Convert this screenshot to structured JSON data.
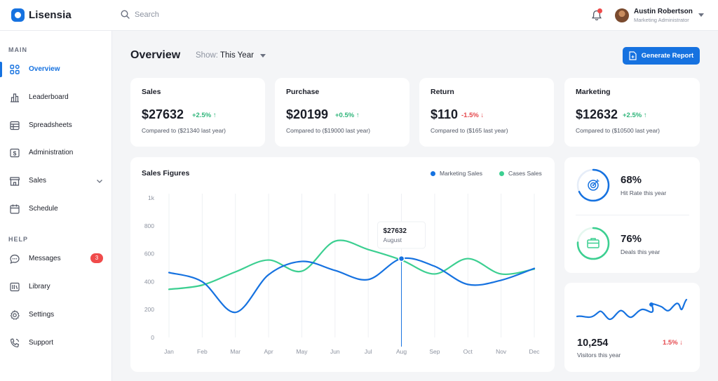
{
  "app": {
    "name": "Lisensia"
  },
  "search": {
    "placeholder": "Search"
  },
  "user": {
    "name": "Austin Robertson",
    "role": "Marketing Administrator"
  },
  "sidebar": {
    "main_label": "MAIN",
    "help_label": "HELP",
    "main_items": [
      {
        "label": "Overview",
        "icon": "grid-icon",
        "active": true
      },
      {
        "label": "Leaderboard",
        "icon": "bar-chart-icon"
      },
      {
        "label": "Spreadsheets",
        "icon": "table-icon"
      },
      {
        "label": "Administration",
        "icon": "dollar-icon"
      },
      {
        "label": "Sales",
        "icon": "store-icon",
        "expandable": true
      },
      {
        "label": "Schedule",
        "icon": "calendar-icon"
      }
    ],
    "help_items": [
      {
        "label": "Messages",
        "icon": "chat-icon",
        "badge": "3"
      },
      {
        "label": "Library",
        "icon": "library-icon"
      },
      {
        "label": "Settings",
        "icon": "gear-icon"
      },
      {
        "label": "Support",
        "icon": "phone-icon"
      }
    ]
  },
  "header": {
    "title": "Overview",
    "show_label": "Show:",
    "show_value": "This Year",
    "generate_label": "Generate Report"
  },
  "stats": [
    {
      "title": "Sales",
      "value": "$27632",
      "change": "+2.5%",
      "direction": "up",
      "compare": "Compared to ($21340 last year)"
    },
    {
      "title": "Purchase",
      "value": "$20199",
      "change": "+0.5%",
      "direction": "up",
      "compare": "Compared to ($19000 last year)"
    },
    {
      "title": "Return",
      "value": "$110",
      "change": "-1.5%",
      "direction": "down",
      "compare": "Compared to ($165 last year)"
    },
    {
      "title": "Marketing",
      "value": "$12632",
      "change": "+2.5%",
      "direction": "up",
      "compare": "Compared to ($10500 last year)"
    }
  ],
  "sales_figures": {
    "title": "Sales Figures",
    "tooltip": {
      "value": "$27632",
      "label": "August"
    }
  },
  "kpis": [
    {
      "pct": "68%",
      "label": "Hit Rate this year",
      "value": 0.68,
      "color": "#1672e0",
      "icon": "target-icon"
    },
    {
      "pct": "76%",
      "label": "Deals this year",
      "value": 0.76,
      "color": "#3ccf91",
      "icon": "briefcase-icon"
    }
  ],
  "visitors": {
    "value": "10,254",
    "label": "Visitors this year",
    "change": "1.5%"
  },
  "colors": {
    "accent": "#1672e0",
    "green": "#3ccf91",
    "red": "#e5484d"
  },
  "chart_data": {
    "type": "line",
    "title": "Sales Figures",
    "x": [
      "Jan",
      "Feb",
      "Mar",
      "Apr",
      "May",
      "Jun",
      "Jul",
      "Aug",
      "Sep",
      "Oct",
      "Nov",
      "Dec"
    ],
    "yticks": [
      "0",
      "200",
      "400",
      "600",
      "800",
      "1k"
    ],
    "ylim": [
      0,
      1000
    ],
    "grid": true,
    "legend_position": "top-right",
    "series": [
      {
        "name": "Marketing Sales",
        "color": "#1672e0",
        "values": [
          465,
          400,
          180,
          450,
          545,
          480,
          415,
          565,
          510,
          380,
          410,
          495
        ]
      },
      {
        "name": "Cases Sales",
        "color": "#3ccf91",
        "values": [
          345,
          375,
          470,
          555,
          475,
          690,
          630,
          555,
          455,
          565,
          455,
          490
        ]
      }
    ]
  }
}
